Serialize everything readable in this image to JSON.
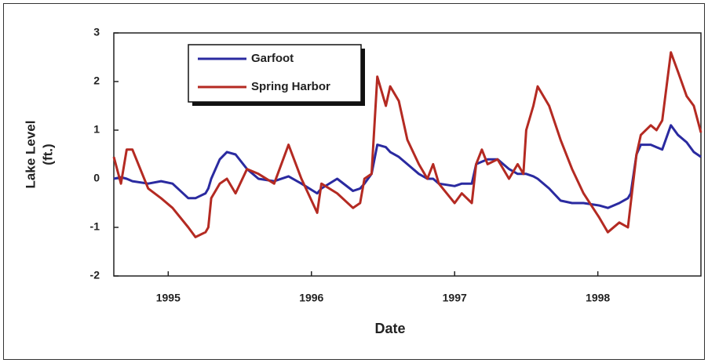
{
  "chart_data": {
    "type": "line",
    "y_label": [
      "Lake Level",
      "(ft.)"
    ],
    "x_label": "Date",
    "x": [
      1994.62,
      1994.67,
      1994.71,
      1994.75,
      1994.86,
      1994.95,
      1995.03,
      1995.14,
      1995.19,
      1995.26,
      1995.28,
      1995.3,
      1995.36,
      1995.41,
      1995.47,
      1995.55,
      1995.63,
      1995.74,
      1995.84,
      1995.93,
      1996.04,
      1996.07,
      1996.18,
      1996.29,
      1996.34,
      1996.37,
      1996.42,
      1996.46,
      1996.52,
      1996.55,
      1996.61,
      1996.67,
      1996.75,
      1996.81,
      1996.85,
      1996.89,
      1997.0,
      1997.05,
      1997.12,
      1997.15,
      1997.19,
      1997.23,
      1997.3,
      1997.38,
      1997.44,
      1997.48,
      1997.5,
      1997.55,
      1997.58,
      1997.66,
      1997.74,
      1997.82,
      1997.9,
      1998.01,
      1998.07,
      1998.15,
      1998.21,
      1998.23,
      1998.27,
      1998.3,
      1998.37,
      1998.41,
      1998.45,
      1998.51,
      1998.56,
      1998.62,
      1998.67,
      1998.72
    ],
    "series": [
      {
        "name": "Garfoot",
        "color": "#2a2aa0",
        "values": [
          0.0,
          0.03,
          0.0,
          -0.05,
          -0.1,
          -0.05,
          -0.1,
          -0.4,
          -0.4,
          -0.3,
          -0.2,
          0.0,
          0.4,
          0.55,
          0.5,
          0.2,
          0.0,
          -0.05,
          0.05,
          -0.1,
          -0.3,
          -0.2,
          0.0,
          -0.25,
          -0.2,
          -0.1,
          0.1,
          0.7,
          0.65,
          0.55,
          0.45,
          0.3,
          0.1,
          0.0,
          0.0,
          -0.1,
          -0.15,
          -0.1,
          -0.1,
          0.3,
          0.35,
          0.4,
          0.4,
          0.2,
          0.1,
          0.1,
          0.1,
          0.05,
          0.0,
          -0.2,
          -0.45,
          -0.5,
          -0.5,
          -0.55,
          -0.6,
          -0.5,
          -0.4,
          -0.3,
          0.5,
          0.7,
          0.7,
          0.65,
          0.6,
          1.1,
          0.9,
          0.75,
          0.55,
          0.45
        ]
      },
      {
        "name": "Spring Harbor",
        "color": "#b42a22",
        "values": [
          0.45,
          -0.1,
          0.6,
          0.6,
          -0.2,
          -0.4,
          -0.6,
          -1.0,
          -1.2,
          -1.1,
          -1.0,
          -0.4,
          -0.1,
          0.0,
          -0.3,
          0.2,
          0.1,
          -0.1,
          0.7,
          0.0,
          -0.7,
          -0.1,
          -0.3,
          -0.6,
          -0.5,
          0.0,
          0.1,
          2.1,
          1.5,
          1.9,
          1.6,
          0.8,
          0.3,
          0.0,
          0.3,
          -0.1,
          -0.5,
          -0.3,
          -0.5,
          0.3,
          0.6,
          0.3,
          0.4,
          0.0,
          0.3,
          0.1,
          1.0,
          1.5,
          1.9,
          1.5,
          0.8,
          0.2,
          -0.3,
          -0.8,
          -1.1,
          -0.9,
          -1.0,
          -0.5,
          0.5,
          0.9,
          1.1,
          1.0,
          1.2,
          2.6,
          2.2,
          1.7,
          1.5,
          0.95
        ]
      }
    ],
    "xlim": [
      1994.62,
      1998.72
    ],
    "xticks": [
      1995,
      1996,
      1997,
      1998
    ],
    "ylim": [
      -2,
      3
    ],
    "yticks": [
      -2,
      -1,
      0,
      1,
      2,
      3
    ],
    "legend": "upper left",
    "grid": false
  }
}
